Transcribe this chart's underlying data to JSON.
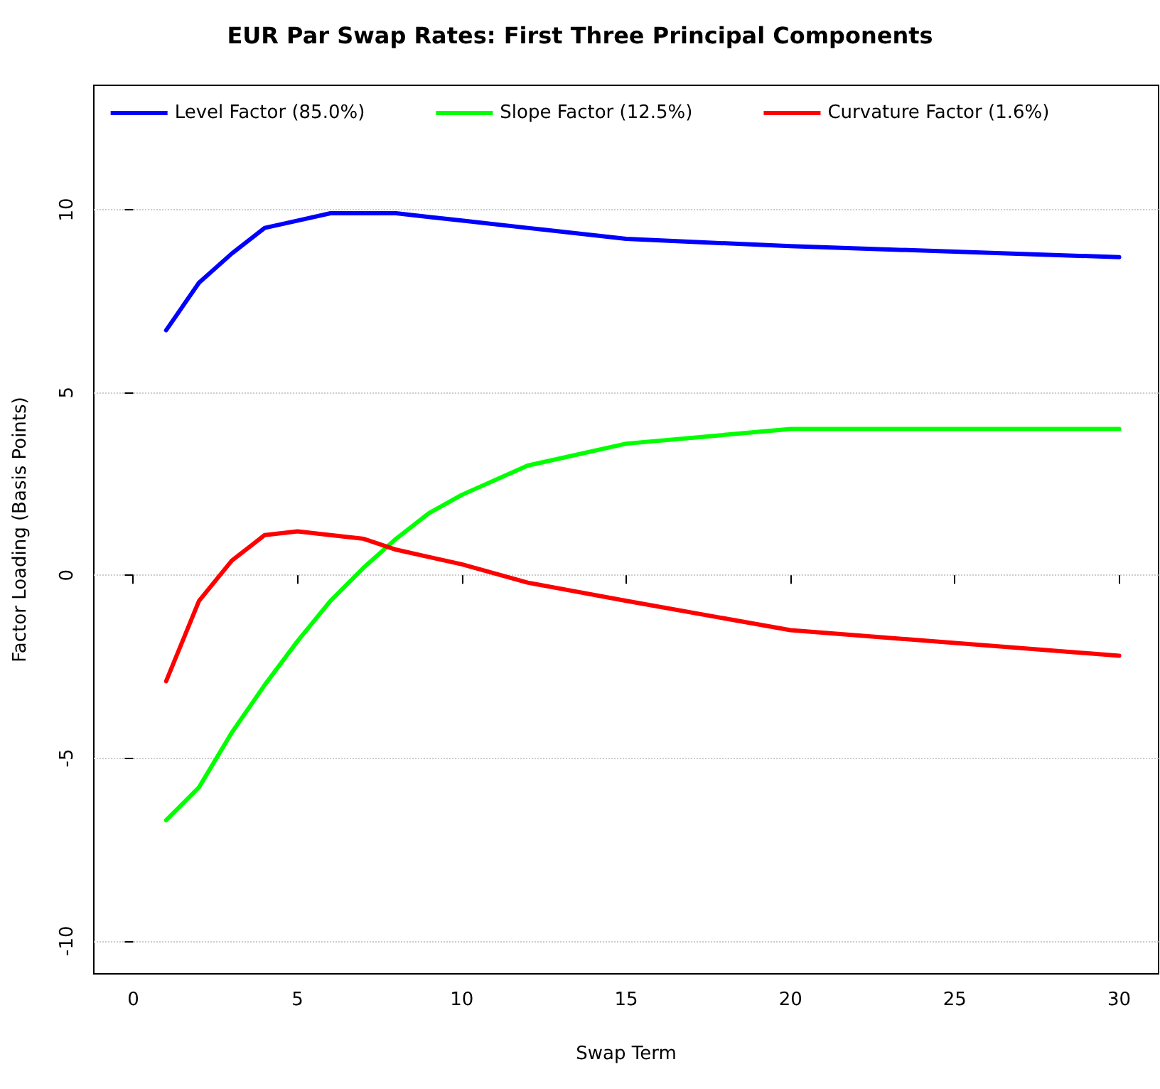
{
  "chart_data": {
    "type": "line",
    "title": "EUR Par Swap Rates: First Three Principal Components",
    "xlabel": "Swap Term",
    "ylabel": "Factor Loading (Basis Points)",
    "x": [
      1,
      2,
      3,
      4,
      5,
      6,
      7,
      8,
      9,
      10,
      12,
      15,
      20,
      30
    ],
    "series": [
      {
        "name": "Level Factor (85.0%)",
        "color": "#0000ff",
        "values": [
          6.7,
          8.0,
          8.8,
          9.5,
          9.7,
          9.9,
          9.9,
          9.9,
          9.8,
          9.7,
          9.5,
          9.2,
          9.0,
          8.7
        ]
      },
      {
        "name": "Slope Factor (12.5%)",
        "color": "#00ff00",
        "values": [
          -6.7,
          -5.8,
          -4.3,
          -3.0,
          -1.8,
          -0.7,
          0.2,
          1.0,
          1.7,
          2.2,
          3.0,
          3.6,
          4.0,
          4.0
        ]
      },
      {
        "name": "Curvature Factor (1.6%)",
        "color": "#ff0000",
        "values": [
          -2.9,
          -0.7,
          0.4,
          1.1,
          1.2,
          1.1,
          1.0,
          0.7,
          0.5,
          0.3,
          -0.2,
          -0.7,
          -1.5,
          -2.2
        ]
      }
    ],
    "xlim": [
      -1.2,
      31.2
    ],
    "ylim": [
      -10.9,
      13.4
    ],
    "xticks": [
      0,
      5,
      10,
      15,
      20,
      25,
      30
    ],
    "yticks": [
      -10,
      -5,
      0,
      5,
      10
    ],
    "grid": "y",
    "legend": "top",
    "marker": "none",
    "line_style": "solid"
  }
}
